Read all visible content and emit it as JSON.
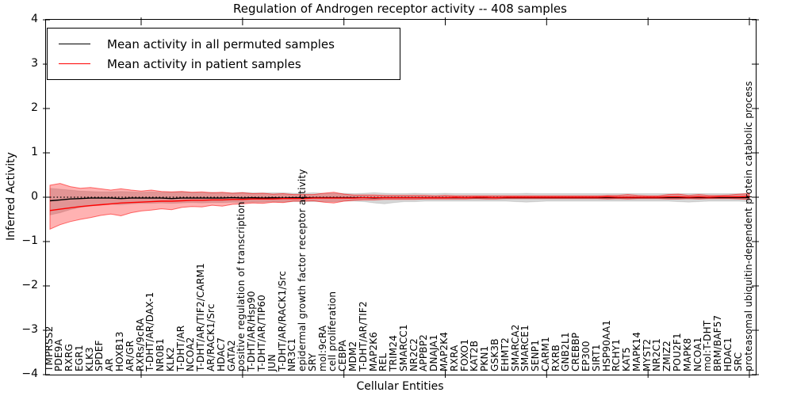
{
  "legend": {
    "items": [
      {
        "label": "Mean activity in all permuted samples",
        "color": "#000000"
      },
      {
        "label": "Mean activity in patient samples",
        "color": "#ff0000"
      }
    ]
  },
  "chart_data": {
    "type": "line",
    "title": "Regulation of Androgen receptor activity -- 408 samples",
    "xlabel": "Cellular Entities",
    "ylabel": "Inferred Activity",
    "ylim": [
      -4,
      4
    ],
    "yticks": [
      4,
      3,
      2,
      1,
      0,
      -1,
      -2,
      -3,
      -4
    ],
    "grid": false,
    "legend_position": "upper left",
    "zero_line": true,
    "categories": [
      "TMPRSS2",
      "PDE9A",
      "RXRG",
      "EGR1",
      "KLK3",
      "SPDEF",
      "AR",
      "HOXB13",
      "AR/GR",
      "RXRs/9cRA",
      "T-DHT/AR/DAX-1",
      "NR0B1",
      "KLK2",
      "T-DHT/AR",
      "NCOA2",
      "T-DHT/AR/TIF2/CARM1",
      "AR/RACK1/Src",
      "HDAC7",
      "GATA2",
      "positive regulation of transcription",
      "T-DHT/AR/Hsp90",
      "T-DHT/AR/TIP60",
      "JUN",
      "T-DHT/AR/RACK1/Src",
      "NR3C1",
      "epidermal growth factor receptor activity",
      "SRY",
      "mol:9cRA",
      "cell proliferation",
      "CEBPA",
      "MDM2",
      "T-DHT/AR/TIF2",
      "MAP2K6",
      "REL",
      "TRIM24",
      "SMARCC1",
      "NR2C2",
      "APPBP2",
      "DNAJA1",
      "MAP2K4",
      "RXRA",
      "FOXO1",
      "KAT2B",
      "PKN1",
      "GSK3B",
      "EHMT2",
      "SMARCA2",
      "SMARCE1",
      "SENP1",
      "CARM1",
      "RXRB",
      "GNB2L1",
      "CREBBP",
      "EP300",
      "SIRT1",
      "HSP90AA1",
      "RCHY1",
      "KAT5",
      "MAPK14",
      "MYST2",
      "NR2C1",
      "ZMIZ2",
      "POU2F1",
      "MAPK8",
      "NCOA1",
      "mol:T-DHT",
      "BRM/BAF57",
      "HDAC1",
      "SRC",
      "proteasomal ubiquitin-dependent protein catabolic process"
    ],
    "series": [
      {
        "name": "Mean activity in all permuted samples",
        "color": "#000000",
        "values": [
          -0.08,
          -0.06,
          -0.04,
          -0.03,
          -0.02,
          -0.02,
          -0.02,
          -0.03,
          -0.02,
          -0.02,
          -0.02,
          -0.02,
          -0.03,
          -0.02,
          -0.02,
          -0.02,
          -0.02,
          -0.02,
          -0.01,
          -0.02,
          -0.01,
          -0.02,
          -0.01,
          -0.02,
          -0.01,
          -0.01,
          -0.01,
          -0.01,
          -0.01,
          -0.01,
          -0.01,
          -0.01,
          -0.02,
          -0.01,
          -0.01,
          -0.01,
          -0.01,
          -0.01,
          -0.01,
          -0.01,
          -0.01,
          -0.01,
          -0.01,
          -0.01,
          -0.01,
          -0.01,
          -0.01,
          -0.01,
          -0.01,
          -0.01,
          -0.01,
          -0.01,
          -0.01,
          -0.01,
          -0.01,
          -0.01,
          -0.01,
          -0.01,
          -0.01,
          -0.01,
          -0.01,
          -0.01,
          -0.01,
          -0.01,
          -0.01,
          -0.01,
          -0.01,
          -0.01,
          -0.01,
          -0.01
        ]
      },
      {
        "name": "Mean activity in patient samples",
        "color": "#ff0000",
        "values": [
          -0.3,
          -0.27,
          -0.24,
          -0.21,
          -0.19,
          -0.17,
          -0.15,
          -0.13,
          -0.12,
          -0.11,
          -0.1,
          -0.09,
          -0.09,
          -0.08,
          -0.07,
          -0.07,
          -0.06,
          -0.06,
          -0.05,
          -0.05,
          -0.04,
          -0.04,
          -0.04,
          -0.03,
          -0.03,
          -0.03,
          -0.02,
          -0.02,
          -0.02,
          -0.02,
          -0.02,
          -0.01,
          -0.01,
          -0.01,
          -0.01,
          -0.01,
          -0.01,
          -0.01,
          -0.01,
          -0.01,
          0.0,
          -0.01,
          0.0,
          0.0,
          -0.01,
          0.0,
          0.0,
          0.0,
          0.0,
          0.0,
          0.0,
          0.0,
          0.0,
          0.0,
          0.0,
          0.01,
          0.0,
          0.0,
          0.0,
          0.0,
          0.0,
          0.01,
          0.01,
          0.0,
          0.01,
          0.0,
          0.01,
          0.01,
          0.01,
          0.02
        ]
      }
    ],
    "bands": [
      {
        "name": "permuted-samples-std-band",
        "color": "rgba(0,0,0,0.16)",
        "edge": "rgba(0,0,0,0.10)",
        "upper": [
          0.2,
          0.18,
          0.16,
          0.14,
          0.13,
          0.12,
          0.12,
          0.13,
          0.12,
          0.11,
          0.12,
          0.11,
          0.11,
          0.12,
          0.11,
          0.1,
          0.11,
          0.1,
          0.1,
          0.11,
          0.1,
          0.1,
          0.1,
          0.1,
          0.09,
          0.09,
          0.1,
          0.09,
          0.09,
          0.09,
          0.08,
          0.09,
          0.1,
          0.09,
          0.08,
          0.08,
          0.09,
          0.08,
          0.08,
          0.09,
          0.08,
          0.08,
          0.08,
          0.08,
          0.08,
          0.08,
          0.08,
          0.09,
          0.08,
          0.08,
          0.08,
          0.08,
          0.08,
          0.08,
          0.08,
          0.08,
          0.08,
          0.08,
          0.08,
          0.08,
          0.08,
          0.08,
          0.08,
          0.08,
          0.08,
          0.08,
          0.08,
          0.08,
          0.08,
          0.09
        ],
        "lower": [
          -0.4,
          -0.35,
          -0.28,
          -0.23,
          -0.2,
          -0.18,
          -0.16,
          -0.17,
          -0.15,
          -0.14,
          -0.14,
          -0.13,
          -0.14,
          -0.13,
          -0.12,
          -0.13,
          -0.12,
          -0.12,
          -0.11,
          -0.12,
          -0.11,
          -0.11,
          -0.1,
          -0.11,
          -0.1,
          -0.1,
          -0.1,
          -0.1,
          -0.1,
          -0.09,
          -0.09,
          -0.1,
          -0.13,
          -0.15,
          -0.12,
          -0.1,
          -0.1,
          -0.09,
          -0.09,
          -0.09,
          -0.09,
          -0.09,
          -0.09,
          -0.09,
          -0.09,
          -0.09,
          -0.1,
          -0.11,
          -0.1,
          -0.09,
          -0.09,
          -0.09,
          -0.09,
          -0.09,
          -0.09,
          -0.09,
          -0.09,
          -0.09,
          -0.09,
          -0.09,
          -0.09,
          -0.09,
          -0.1,
          -0.11,
          -0.1,
          -0.09,
          -0.09,
          -0.09,
          -0.09,
          -0.1
        ]
      },
      {
        "name": "patient-samples-std-band",
        "color": "rgba(255,0,0,0.30)",
        "edge": "rgba(255,0,0,0.55)",
        "upper": [
          0.27,
          0.31,
          0.24,
          0.2,
          0.22,
          0.19,
          0.16,
          0.19,
          0.16,
          0.14,
          0.16,
          0.13,
          0.12,
          0.13,
          0.11,
          0.12,
          0.1,
          0.11,
          0.09,
          0.1,
          0.08,
          0.09,
          0.07,
          0.08,
          0.06,
          0.06,
          0.06,
          0.09,
          0.11,
          0.07,
          0.05,
          0.05,
          0.05,
          0.04,
          0.04,
          0.04,
          0.04,
          0.04,
          0.03,
          0.04,
          0.03,
          0.03,
          0.03,
          0.03,
          0.03,
          0.03,
          0.03,
          0.03,
          0.03,
          0.03,
          0.03,
          0.03,
          0.03,
          0.03,
          0.03,
          0.04,
          0.04,
          0.06,
          0.04,
          0.03,
          0.03,
          0.06,
          0.07,
          0.04,
          0.06,
          0.04,
          0.04,
          0.05,
          0.07,
          0.08
        ],
        "lower": [
          -0.72,
          -0.62,
          -0.55,
          -0.5,
          -0.46,
          -0.41,
          -0.38,
          -0.42,
          -0.35,
          -0.31,
          -0.29,
          -0.26,
          -0.28,
          -0.23,
          -0.21,
          -0.22,
          -0.18,
          -0.2,
          -0.16,
          -0.15,
          -0.13,
          -0.14,
          -0.11,
          -0.12,
          -0.09,
          -0.09,
          -0.08,
          -0.11,
          -0.13,
          -0.09,
          -0.07,
          -0.06,
          -0.06,
          -0.05,
          -0.05,
          -0.05,
          -0.05,
          -0.04,
          -0.04,
          -0.04,
          -0.04,
          -0.04,
          -0.03,
          -0.04,
          -0.04,
          -0.03,
          -0.03,
          -0.03,
          -0.03,
          -0.03,
          -0.03,
          -0.03,
          -0.03,
          -0.03,
          -0.03,
          -0.04,
          -0.03,
          -0.04,
          -0.03,
          -0.03,
          -0.03,
          -0.04,
          -0.04,
          -0.03,
          -0.04,
          -0.03,
          -0.03,
          -0.03,
          -0.04,
          -0.05
        ]
      }
    ]
  }
}
